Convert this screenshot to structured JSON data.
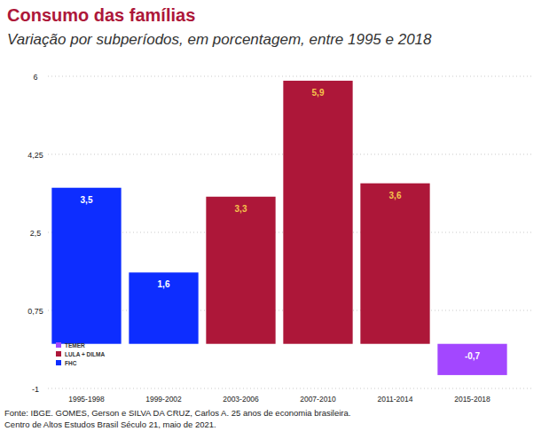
{
  "chart_data": {
    "type": "bar",
    "title": "Consumo das famílias",
    "subtitle": "Variação por subperíodos, em porcentagem, entre 1995 e 2018",
    "categories": [
      "1995-1998",
      "1999-2002",
      "2003-2006",
      "2007-2010",
      "2011-2014",
      "2015-2018"
    ],
    "series": [
      {
        "name": "TEMER",
        "color": "#a347ff",
        "values": [
          null,
          null,
          null,
          null,
          null,
          -0.7
        ],
        "value_labels": [
          null,
          null,
          null,
          null,
          null,
          "-0,7"
        ]
      },
      {
        "name": "LULA + DILMA",
        "color": "#ad1739",
        "values": [
          null,
          null,
          3.3,
          5.9,
          3.6,
          null
        ],
        "value_labels": [
          null,
          null,
          "3,3",
          "5,9",
          "3,6",
          null
        ]
      },
      {
        "name": "FHC",
        "color": "#0d2dff",
        "values": [
          3.5,
          1.6,
          null,
          null,
          null,
          null
        ],
        "value_labels": [
          "3,5",
          "1,6",
          null,
          null,
          null,
          null
        ]
      }
    ],
    "stacked": true,
    "data_labels": true,
    "legend": "bottom-left",
    "grid": true,
    "ylim": [
      -1,
      6
    ],
    "yticks": [
      -1,
      {
        "value": 0.75,
        "label": "0,75"
      },
      {
        "value": 2.5,
        "label": "2,5"
      },
      {
        "value": 4.25,
        "label": "4,25"
      },
      6
    ],
    "source": [
      "Fonte: IBGE. GOMES, Gerson e SILVA DA CRUZ, Carlos A. 25 anos de economia brasileira.",
      "Centro de Altos Estudos Brasil Século 21, maio de 2021."
    ]
  }
}
